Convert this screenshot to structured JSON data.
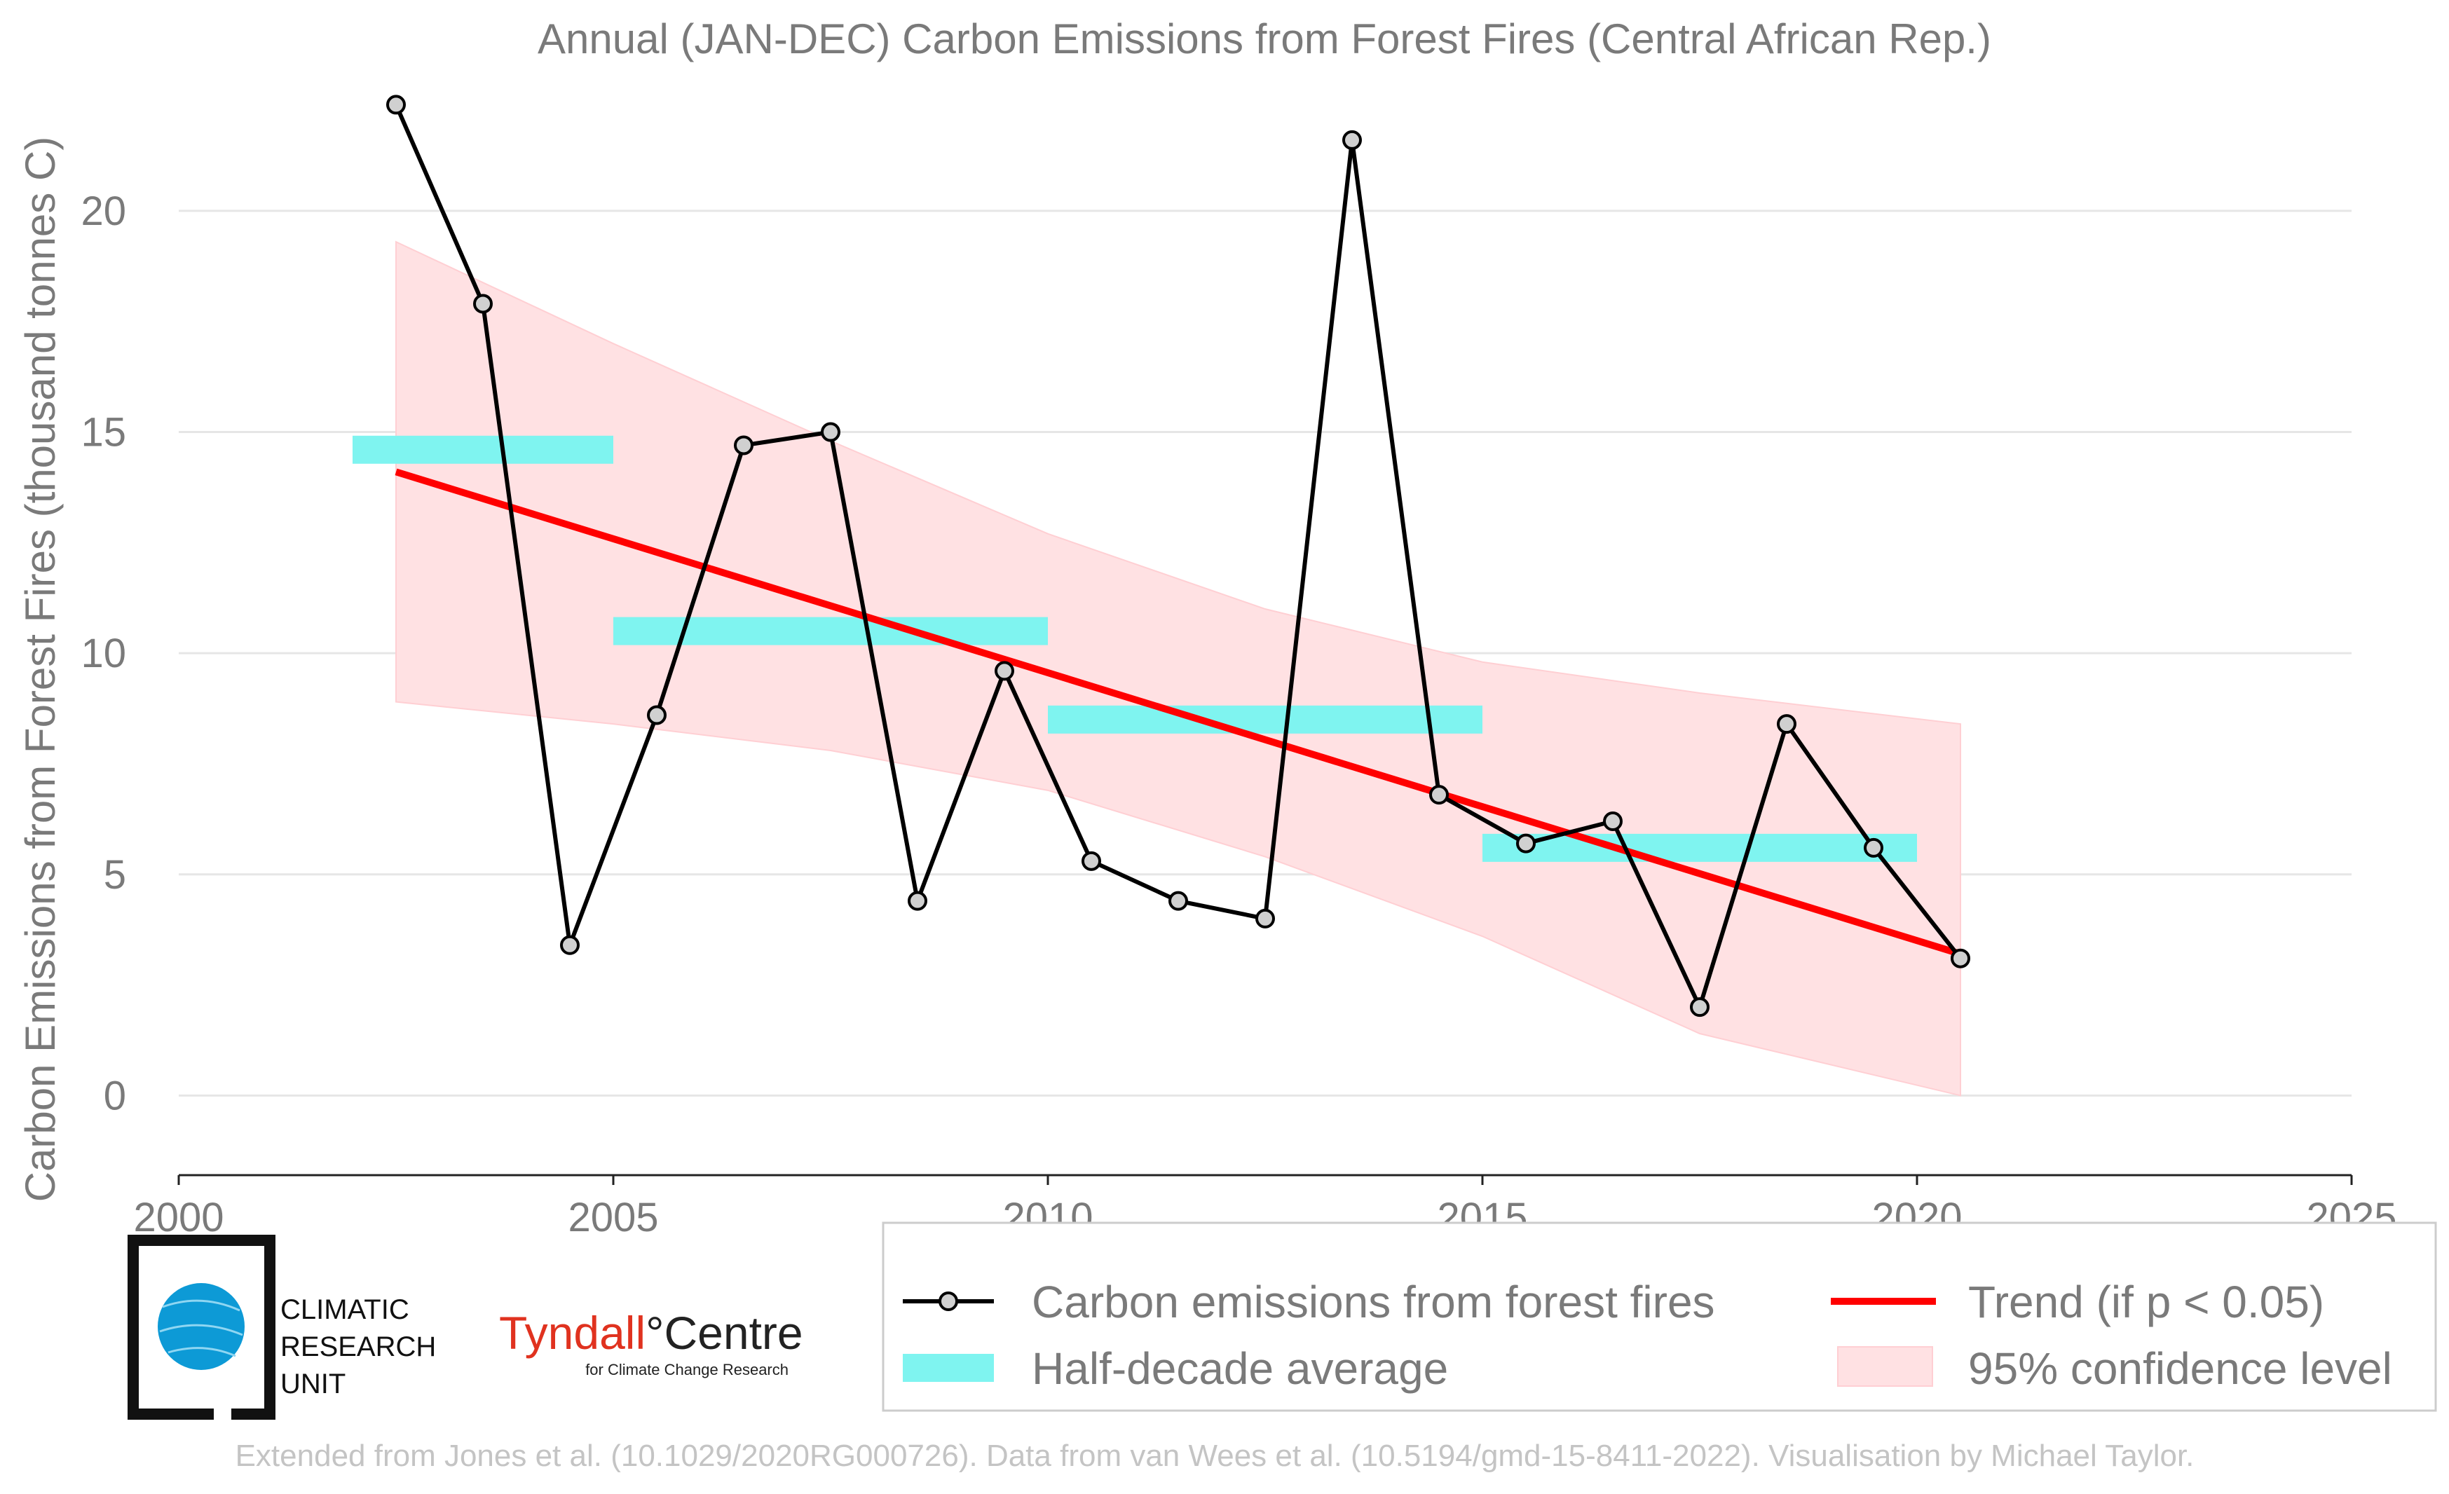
{
  "colors": {
    "line": "#000000",
    "marker_fill": "#d0d0d0",
    "half_decade": "#7ff4f0",
    "trend": "#ff0000",
    "confidence": "#ffe1e3",
    "grid": "#e6e6e6",
    "text": "#7a7a7a",
    "footer": "#c4c4c4"
  },
  "chart_data": {
    "type": "line",
    "title": "Annual (JAN-DEC) Carbon Emissions from Forest Fires (Central African Rep.)",
    "xlabel": "",
    "ylabel": "Carbon Emissions from Forest Fires (thousand tonnes C)",
    "xlim": [
      2000,
      2025
    ],
    "ylim": [
      -1.8,
      23.5
    ],
    "x_ticks": [
      2000,
      2005,
      2010,
      2015,
      2020,
      2025
    ],
    "y_ticks": [
      0,
      5,
      10,
      15,
      20
    ],
    "grid": true,
    "legend_position": "bottom",
    "series": [
      {
        "name": "Carbon emissions from forest fires",
        "x": [
          2002.5,
          2003.5,
          2004.5,
          2005.5,
          2006.5,
          2007.5,
          2008.5,
          2009.5,
          2010.5,
          2011.5,
          2012.5,
          2013.5,
          2014.5,
          2015.5,
          2016.5,
          2017.5,
          2018.5,
          2019.5,
          2020.5
        ],
        "values": [
          22.4,
          17.9,
          3.4,
          8.6,
          14.7,
          15.0,
          4.4,
          9.6,
          5.3,
          4.4,
          4.0,
          21.6,
          6.8,
          5.7,
          6.2,
          2.0,
          8.4,
          5.6,
          3.1
        ]
      },
      {
        "name": "Half-decade average",
        "segments": [
          {
            "x_start": 2002,
            "x_end": 2005,
            "value": 14.6
          },
          {
            "x_start": 2005,
            "x_end": 2010,
            "value": 10.5
          },
          {
            "x_start": 2010,
            "x_end": 2015,
            "value": 8.5
          },
          {
            "x_start": 2015,
            "x_end": 2020,
            "value": 5.6
          }
        ]
      },
      {
        "name": "Trend (if p < 0.05)",
        "x": [
          2002.5,
          2020.5
        ],
        "values": [
          14.1,
          3.2
        ]
      },
      {
        "name": "95% confidence level",
        "x": [
          2002.5,
          2005,
          2007.5,
          2010,
          2012.5,
          2015,
          2017.5,
          2020.5
        ],
        "upper": [
          19.3,
          17.0,
          14.8,
          12.7,
          11.0,
          9.8,
          9.1,
          8.4
        ],
        "lower": [
          8.9,
          8.4,
          7.8,
          6.9,
          5.4,
          3.6,
          1.4,
          0.0
        ]
      }
    ]
  },
  "legend": {
    "items": [
      {
        "label": "Carbon emissions from forest fires"
      },
      {
        "label": "Trend (if p < 0.05)"
      },
      {
        "label": "Half-decade average"
      },
      {
        "label": "95% confidence level"
      }
    ]
  },
  "logos": {
    "cru": {
      "line1": "CLIMATIC",
      "line2": "RESEARCH",
      "line3": "UNIT"
    },
    "tyndall": {
      "main": "Tyndall",
      "accent": "°Centre",
      "sub": "for Climate Change Research"
    }
  },
  "footer": {
    "credit": "Extended from Jones et al. (10.1029/2020RG000726). Data from van Wees et al. (10.5194/gmd-15-8411-2022). Visualisation by Michael Taylor."
  }
}
